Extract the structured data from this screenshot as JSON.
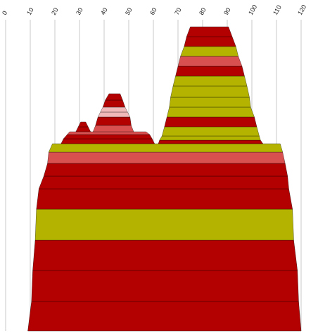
{
  "chart_data": {
    "type": "range-stack",
    "xlim": [
      0,
      120
    ],
    "xticks": [
      0,
      10,
      20,
      30,
      40,
      50,
      60,
      70,
      80,
      90,
      100,
      110,
      120
    ],
    "grid": true,
    "shapes": [
      {
        "bands": [
          {
            "start": 9,
            "end": 120,
            "color": "#b30000"
          },
          {
            "start": 10.5,
            "end": 119,
            "color": "#b30000"
          },
          {
            "start": 11,
            "end": 118.5,
            "color": "#b30000"
          },
          {
            "start": 12,
            "end": 117,
            "color": "#b3b300"
          },
          {
            "start": 12.5,
            "end": 116.5,
            "color": "#b30000"
          },
          {
            "start": 13.5,
            "end": 115,
            "color": "#b30000"
          },
          {
            "start": 15.5,
            "end": 114.5,
            "color": "#b30000"
          },
          {
            "start": 17,
            "end": 113.5,
            "color": "#d95050"
          },
          {
            "start": 17.5,
            "end": 112.5,
            "color": "#b3b300"
          }
        ],
        "top": {
          "start": 19,
          "end": 111.5
        }
      },
      {
        "bands": [
          {
            "start": 62,
            "end": 104.5,
            "color": "#b30000"
          },
          {
            "start": 62.5,
            "end": 103.5,
            "color": "#b3b300"
          },
          {
            "start": 63.5,
            "end": 103,
            "color": "#b3b300"
          },
          {
            "start": 64.5,
            "end": 102,
            "color": "#b30000"
          },
          {
            "start": 65.5,
            "end": 101,
            "color": "#b3b300"
          },
          {
            "start": 66.5,
            "end": 99.5,
            "color": "#b3b300"
          },
          {
            "start": 67,
            "end": 99,
            "color": "#b3b300"
          },
          {
            "start": 68,
            "end": 98,
            "color": "#b3b300"
          },
          {
            "start": 69,
            "end": 97,
            "color": "#b30000"
          },
          {
            "start": 70,
            "end": 96,
            "color": "#d95050"
          },
          {
            "start": 71,
            "end": 94.5,
            "color": "#b3b300"
          },
          {
            "start": 72.5,
            "end": 93.5,
            "color": "#b30000"
          },
          {
            "start": 73.5,
            "end": 92,
            "color": "#b30000"
          }
        ],
        "top": {
          "start": 75,
          "end": 90.5
        }
      },
      {
        "bands": [
          {
            "start": 22.5,
            "end": 60.5,
            "color": "#b30000"
          },
          {
            "start": 23.5,
            "end": 59.5,
            "color": "#b30000"
          },
          {
            "start": 25,
            "end": 58.5,
            "color": "#d95050"
          }
        ],
        "top": {
          "start": 26,
          "end": 57
        }
      },
      {
        "bands": [
          {
            "start": 28.5,
            "end": 34.5,
            "color": "#b30000"
          },
          {
            "start": 29.5,
            "end": 33.5,
            "color": "#b30000"
          }
        ],
        "top": {
          "start": 30.5,
          "end": 32.5
        }
      },
      {
        "bands": [
          {
            "start": 35.5,
            "end": 52,
            "color": "#d95050"
          },
          {
            "start": 36.5,
            "end": 51,
            "color": "#b30000"
          },
          {
            "start": 37.5,
            "end": 50.5,
            "color": "#f0b8b8"
          },
          {
            "start": 38.5,
            "end": 49.5,
            "color": "#f0b8b8"
          },
          {
            "start": 39.5,
            "end": 48.5,
            "color": "#b30000"
          },
          {
            "start": 40.5,
            "end": 47.5,
            "color": "#b30000"
          }
        ],
        "top": {
          "start": 42,
          "end": 46.5
        }
      }
    ]
  }
}
